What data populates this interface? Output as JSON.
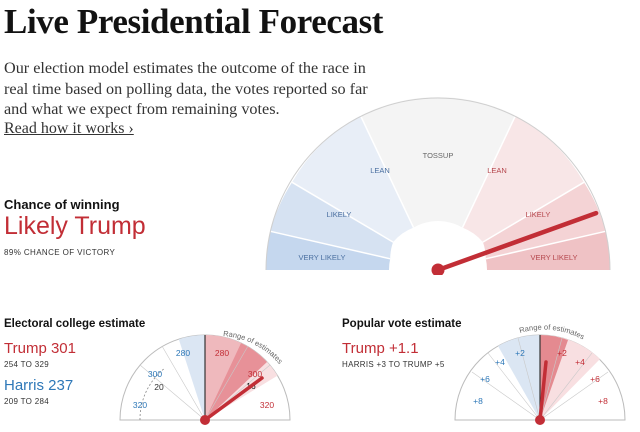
{
  "header": {
    "title": "Live Presidential Forecast",
    "intro": "Our election model estimates the outcome of the race in real time based on polling data, the votes reported so far and what we expect from remaining votes.",
    "read_more": "Read how it works ›"
  },
  "chance": {
    "label": "Chance of winning",
    "headline": "Likely Trump",
    "subtitle": "89% CHANCE OF VICTORY",
    "probability": 0.89,
    "segments": [
      "VERY LIKELY",
      "LIKELY",
      "LEAN",
      "TOSSUP",
      "LEAN",
      "LIKELY",
      "VERY LIKELY"
    ]
  },
  "electoral": {
    "title": "Electoral college estimate",
    "trump": "Trump 301",
    "trump_range": "254 TO 329",
    "harris": "Harris 237",
    "harris_range": "209 TO 284",
    "range_label": "Range of estimates",
    "ticks_left": [
      "280",
      "300",
      "320"
    ],
    "ticks_right": [
      "280",
      "300",
      "320"
    ],
    "center_label": "20",
    "needle_label": "16"
  },
  "popular": {
    "title": "Popular vote estimate",
    "value": "Trump +1.1",
    "range": "HARRIS +3 TO TRUMP +5",
    "range_label": "Range of estimates",
    "ticks_left": [
      "+2",
      "+4",
      "+6",
      "+8"
    ],
    "ticks_right": [
      "+2",
      "+4",
      "+6",
      "+8"
    ]
  },
  "colors": {
    "trump": "#c22e36",
    "harris": "#2e78b8"
  }
}
